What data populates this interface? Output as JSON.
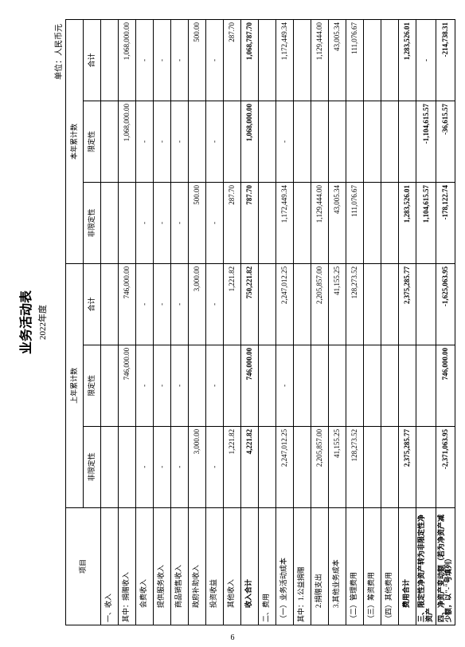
{
  "title": "业务活动表",
  "subtitle": "2022年度",
  "unit": "单位：人民币元",
  "page_number": "6",
  "header": {
    "item": "项目",
    "prev_group": "上年累计数",
    "curr_group": "本年累计数",
    "unrestricted": "非限定性",
    "restricted": "限定性",
    "total": "合计"
  },
  "rows": [
    {
      "label": "一、收入",
      "bold": false,
      "vals": [
        "",
        "",
        "",
        "",
        "",
        ""
      ]
    },
    {
      "label": "其中：捐赠收入",
      "vals": [
        "",
        "746,000.00",
        "746,000.00",
        "",
        "1,068,000.00",
        "1,068,000.00"
      ]
    },
    {
      "label": "　　会费收入",
      "vals": [
        "-",
        "-",
        "-",
        "-",
        "-",
        "-"
      ]
    },
    {
      "label": "　　提供服务收入",
      "vals": [
        "-",
        "-",
        "-",
        "-",
        "-",
        "-"
      ]
    },
    {
      "label": "　　商品销售收入",
      "vals": [
        "-",
        "-",
        "-",
        "-",
        "-",
        "-"
      ]
    },
    {
      "label": "　　政府补助收入",
      "vals": [
        "3,000.00",
        "",
        "3,000.00",
        "500.00",
        "",
        "500.00"
      ]
    },
    {
      "label": "　　投资收益",
      "vals": [
        "-",
        "-",
        "-",
        "-",
        "-",
        "-"
      ]
    },
    {
      "label": "　　其他收入",
      "vals": [
        "1,221.82",
        "",
        "1,221.82",
        "287.70",
        "",
        "287.70"
      ]
    },
    {
      "label": "　　收入合计",
      "bold": true,
      "vals": [
        "4,221.82",
        "746,000.00",
        "750,221.82",
        "787.70",
        "1,068,000.00",
        "1,068,787.70"
      ]
    },
    {
      "label": "二、费用",
      "vals": [
        "",
        "",
        "",
        "",
        "",
        ""
      ]
    },
    {
      "label": "（一）业务活动成本",
      "vals": [
        "2,247,012.25",
        "-",
        "2,247,012.25",
        "1,172,449.34",
        "-",
        "1,172,449.34"
      ]
    },
    {
      "label": "其中：1.公益捐赠",
      "vals": [
        "",
        "",
        "",
        "",
        "",
        ""
      ]
    },
    {
      "label": "　　2.捐赠支出",
      "vals": [
        "2,205,857.00",
        "",
        "2,205,857.00",
        "1,129,444.00",
        "",
        "1,129,444.00"
      ]
    },
    {
      "label": "　　3.其他业务成本",
      "vals": [
        "41,155.25",
        "",
        "41,155.25",
        "43,005.34",
        "",
        "43,005.34"
      ]
    },
    {
      "label": "（二）管理费用",
      "vals": [
        "128,273.52",
        "",
        "128,273.52",
        "111,076.67",
        "",
        "111,076.67"
      ]
    },
    {
      "label": "（三）筹资费用",
      "vals": [
        "",
        "",
        "",
        "",
        "",
        ""
      ]
    },
    {
      "label": "（四）其他费用",
      "vals": [
        "",
        "",
        "",
        "",
        "",
        ""
      ]
    },
    {
      "label": "　　费用合计",
      "bold": true,
      "vals": [
        "2,375,285.77",
        "",
        "2,375,285.77",
        "1,283,526.01",
        "",
        "1,283,526.01"
      ]
    },
    {
      "label": "三、限定性净资产转为非限定性净资产",
      "bold": true,
      "vals": [
        "",
        "",
        "",
        "1,104,615.57",
        "-1,104,615.57",
        "-"
      ]
    },
    {
      "label": "四、净资产变动额（若为净资产减少额，以\"-\"号填列）",
      "bold": true,
      "vals": [
        "-2,371,063.95",
        "746,000.00",
        "-1,625,063.95",
        "-178,122.74",
        "-36,615.57",
        "-214,738.31"
      ]
    }
  ]
}
